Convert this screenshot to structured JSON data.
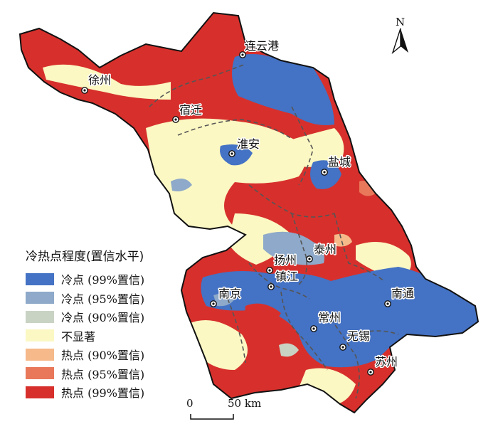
{
  "map": {
    "north_label": "N",
    "scale": {
      "zero": "0",
      "distance": "50 km"
    },
    "cities": [
      {
        "name": "连云港"
      },
      {
        "name": "徐州"
      },
      {
        "name": "宿迁"
      },
      {
        "name": "淮安"
      },
      {
        "name": "盐城"
      },
      {
        "name": "扬州"
      },
      {
        "name": "泰州"
      },
      {
        "name": "镇江"
      },
      {
        "name": "南京"
      },
      {
        "name": "南通"
      },
      {
        "name": "常州"
      },
      {
        "name": "无锡"
      },
      {
        "name": "苏州"
      }
    ]
  },
  "legend": {
    "title": "冷热点程度(置信水平)",
    "items": [
      {
        "label": "冷点 (99%置信)",
        "color": "#4472c4"
      },
      {
        "label": "冷点 (95%置信)",
        "color": "#8ea9c9"
      },
      {
        "label": "冷点 (90%置信)",
        "color": "#c9d3c4"
      },
      {
        "label": "不显著",
        "color": "#fbf8c3"
      },
      {
        "label": "热点 (90%置信)",
        "color": "#f5b98a"
      },
      {
        "label": "热点 (95%置信)",
        "color": "#e9785a"
      },
      {
        "label": "热点 (99%置信)",
        "color": "#d7302c"
      }
    ]
  }
}
